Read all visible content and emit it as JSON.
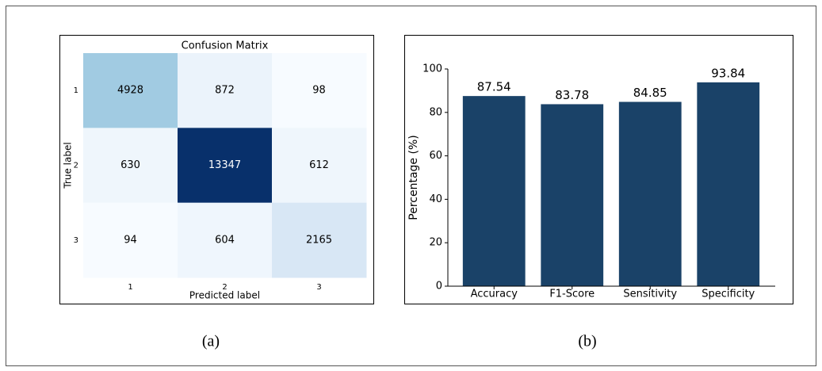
{
  "chart_data": [
    {
      "type": "heatmap",
      "title": "Confusion Matrix",
      "x_label": "Predicted label",
      "y_label": "True label",
      "x_categories": [
        "1",
        "2",
        "3"
      ],
      "y_categories": [
        "1",
        "2",
        "3"
      ],
      "values": [
        [
          4928,
          872,
          98
        ],
        [
          630,
          13347,
          612
        ],
        [
          94,
          604,
          2165
        ]
      ],
      "colormap": "Blues",
      "caption": "(a)"
    },
    {
      "type": "bar",
      "y_label": "Percentage (%)",
      "categories": [
        "Accuracy",
        "F1-Score",
        "Sensitivity",
        "Specificity"
      ],
      "values": [
        87.54,
        83.78,
        84.85,
        93.84
      ],
      "color": "#1a4268",
      "ylim": [
        0,
        100
      ],
      "yticks": [
        0,
        20,
        40,
        60,
        80,
        100
      ],
      "grid": false,
      "caption": "(b)"
    }
  ]
}
